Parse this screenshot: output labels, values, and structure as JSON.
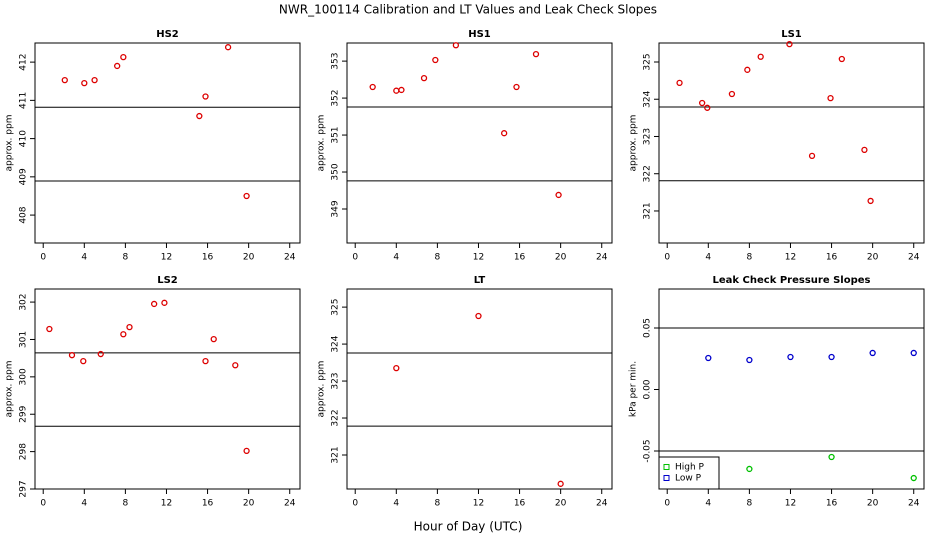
{
  "title": "NWR_100114  Calibration and LT Values and Leak Check Slopes",
  "xlabel": "Hour of Day (UTC)",
  "chart_data": [
    {
      "type": "scatter",
      "title": "HS2",
      "ylabel": "approx. ppm",
      "xlim": [
        -0.8,
        25
      ],
      "xticks": [
        0,
        4,
        8,
        12,
        16,
        20,
        24
      ],
      "ylim": [
        407.27,
        412.5
      ],
      "yticks": [
        408,
        409,
        410,
        411,
        412
      ],
      "hlines": [
        410.82,
        408.89
      ],
      "series": [
        {
          "color": "#dd0000",
          "x": [
            2.1,
            4,
            5,
            7.2,
            7.8,
            15.2,
            15.8,
            18,
            19.8
          ],
          "values": [
            411.53,
            411.45,
            411.53,
            411.9,
            412.13,
            410.59,
            411.1,
            412.39,
            408.5
          ]
        }
      ]
    },
    {
      "type": "scatter",
      "title": "HS1",
      "ylabel": "approx. ppm",
      "xlim": [
        -0.8,
        25
      ],
      "xticks": [
        0,
        4,
        8,
        12,
        16,
        20,
        24
      ],
      "ylim": [
        348.08,
        353.49
      ],
      "yticks": [
        349,
        350,
        351,
        352,
        353
      ],
      "hlines": [
        351.76,
        349.76
      ],
      "series": [
        {
          "color": "#dd0000",
          "x": [
            1.7,
            4,
            4.5,
            6.7,
            7.8,
            9.8,
            14.5,
            15.7,
            17.6,
            19.8
          ],
          "values": [
            352.3,
            352.2,
            352.22,
            352.54,
            353.03,
            353.43,
            351.05,
            352.3,
            353.19,
            349.38
          ]
        }
      ]
    },
    {
      "type": "scatter",
      "title": "LS1",
      "ylabel": "approx. ppm",
      "xlim": [
        -0.8,
        25
      ],
      "xticks": [
        0,
        4,
        8,
        12,
        16,
        20,
        24
      ],
      "ylim": [
        320.14,
        325.51
      ],
      "yticks": [
        321,
        322,
        323,
        324,
        325
      ],
      "hlines": [
        323.79,
        321.81
      ],
      "series": [
        {
          "color": "#dd0000",
          "x": [
            1.2,
            3.4,
            3.9,
            6.3,
            7.8,
            9.1,
            11.9,
            14.1,
            15.9,
            17,
            19.2,
            19.8
          ],
          "values": [
            324.44,
            323.9,
            323.77,
            324.14,
            324.79,
            325.14,
            325.48,
            322.48,
            324.03,
            325.08,
            322.64,
            321.27
          ]
        }
      ]
    },
    {
      "type": "scatter",
      "title": "LS2",
      "ylabel": "approx. ppm",
      "xlim": [
        -0.8,
        25
      ],
      "xticks": [
        0,
        4,
        8,
        12,
        16,
        20,
        24
      ],
      "ylim": [
        297,
        302.35
      ],
      "yticks": [
        297,
        298,
        299,
        300,
        301,
        302
      ],
      "hlines": [
        300.64,
        298.68
      ],
      "series": [
        {
          "color": "#dd0000",
          "x": [
            0.6,
            2.8,
            3.9,
            5.6,
            7.8,
            8.4,
            10.8,
            11.8,
            15.8,
            16.6,
            18.7,
            19.8
          ],
          "values": [
            301.28,
            300.58,
            300.42,
            300.61,
            301.14,
            301.33,
            301.95,
            301.98,
            300.42,
            301.01,
            300.31,
            298.02
          ]
        }
      ]
    },
    {
      "type": "scatter",
      "title": "LT",
      "ylabel": "approx. ppm",
      "xlim": [
        -0.8,
        25
      ],
      "xticks": [
        0,
        4,
        8,
        12,
        16,
        20,
        24
      ],
      "ylim": [
        320.08,
        325.49
      ],
      "yticks": [
        321,
        322,
        323,
        324,
        325
      ],
      "hlines": [
        323.76,
        321.78
      ],
      "series": [
        {
          "color": "#dd0000",
          "x": [
            4,
            12,
            20
          ],
          "values": [
            323.35,
            324.76,
            320.22
          ]
        }
      ]
    },
    {
      "type": "scatter",
      "title": "Leak Check Pressure Slopes",
      "ylabel": "kPa per min.",
      "xlim": [
        -0.8,
        25
      ],
      "xticks": [
        0,
        4,
        8,
        12,
        16,
        20,
        24
      ],
      "ylim": [
        -0.0809,
        0.0817
      ],
      "yticks": [
        -0.05,
        {
          "value": 0,
          "label": "0.00"
        },
        0.05
      ],
      "hlines": [
        0.05,
        -0.05
      ],
      "legend": "bottomleft",
      "series": [
        {
          "name": "High P",
          "color": "#00c000",
          "x": [
            8,
            16,
            24
          ],
          "values": [
            -0.0646,
            -0.0549,
            -0.072
          ]
        },
        {
          "name": "Low P",
          "color": "#0000cc",
          "x": [
            4,
            8,
            12,
            16,
            20,
            24
          ],
          "values": [
            0.0256,
            0.024,
            0.0264,
            0.0264,
            0.0297,
            0.0297
          ]
        }
      ]
    }
  ]
}
